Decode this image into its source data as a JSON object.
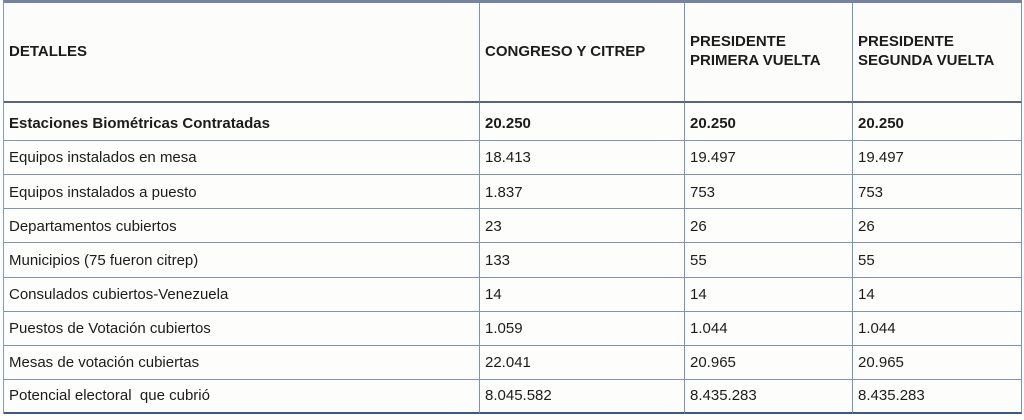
{
  "table": {
    "columns": [
      {
        "label": "DETALLES"
      },
      {
        "label": "CONGRESO Y CITREP"
      },
      {
        "label": "PRESIDENTE PRIMERA VUELTA"
      },
      {
        "label": "PRESIDENTE SEGUNDA VUELTA"
      }
    ],
    "rows": [
      {
        "label": "Estaciones Biométricas Contratadas",
        "congreso_citrep": "20.250",
        "presidente_primera_vuelta": "20.250",
        "presidente_segunda_vuelta": "20.250"
      },
      {
        "label": "Equipos instalados en mesa",
        "congreso_citrep": "18.413",
        "presidente_primera_vuelta": "19.497",
        "presidente_segunda_vuelta": "19.497"
      },
      {
        "label": "Equipos instalados a puesto",
        "congreso_citrep": "1.837",
        "presidente_primera_vuelta": "753",
        "presidente_segunda_vuelta": "753"
      },
      {
        "label": "Departamentos cubiertos",
        "congreso_citrep": "23",
        "presidente_primera_vuelta": "26",
        "presidente_segunda_vuelta": "26"
      },
      {
        "label": "Municipios (75 fueron citrep)",
        "congreso_citrep": "133",
        "presidente_primera_vuelta": "55",
        "presidente_segunda_vuelta": "55"
      },
      {
        "label": "Consulados cubiertos-Venezuela",
        "congreso_citrep": "14",
        "presidente_primera_vuelta": "14",
        "presidente_segunda_vuelta": "14"
      },
      {
        "label": "Puestos de Votación cubiertos",
        "congreso_citrep": "1.059",
        "presidente_primera_vuelta": "1.044",
        "presidente_segunda_vuelta": "1.044"
      },
      {
        "label": "Mesas de votación cubiertas",
        "congreso_citrep": "22.041",
        "presidente_primera_vuelta": "20.965",
        "presidente_segunda_vuelta": "20.965"
      },
      {
        "label": "Potencial electoral  que cubrió",
        "congreso_citrep": "8.045.582",
        "presidente_primera_vuelta": "8.435.283",
        "presidente_segunda_vuelta": "8.435.283"
      }
    ]
  },
  "colors": {
    "border_vertical": "#6e95c5",
    "border_horizontal": "#8091b1",
    "border_top": "#76839f",
    "border_header_bottom": "#5a6472",
    "border_bottom": "#3f5a7d",
    "cell_background": "#fdfdfb",
    "text": "#1c1c1c"
  },
  "chart_data": {
    "type": "table",
    "title": "",
    "columns": [
      "DETALLES",
      "CONGRESO Y CITREP",
      "PRESIDENTE PRIMERA VUELTA",
      "PRESIDENTE SEGUNDA VUELTA"
    ],
    "rows": [
      [
        "Estaciones Biométricas Contratadas",
        "20.250",
        "20.250",
        "20.250"
      ],
      [
        "Equipos instalados en mesa",
        "18.413",
        "19.497",
        "19.497"
      ],
      [
        "Equipos instalados a puesto",
        "1.837",
        "753",
        "753"
      ],
      [
        "Departamentos cubiertos",
        "23",
        "26",
        "26"
      ],
      [
        "Municipios (75 fueron citrep)",
        "133",
        "55",
        "55"
      ],
      [
        "Consulados cubiertos-Venezuela",
        "14",
        "14",
        "14"
      ],
      [
        "Puestos de Votación cubiertos",
        "1.059",
        "1.044",
        "1.044"
      ],
      [
        "Mesas de votación cubiertas",
        "22.041",
        "20.965",
        "20.965"
      ],
      [
        "Potencial electoral  que cubrió",
        "8.045.582",
        "8.435.283",
        "8.435.283"
      ]
    ]
  }
}
